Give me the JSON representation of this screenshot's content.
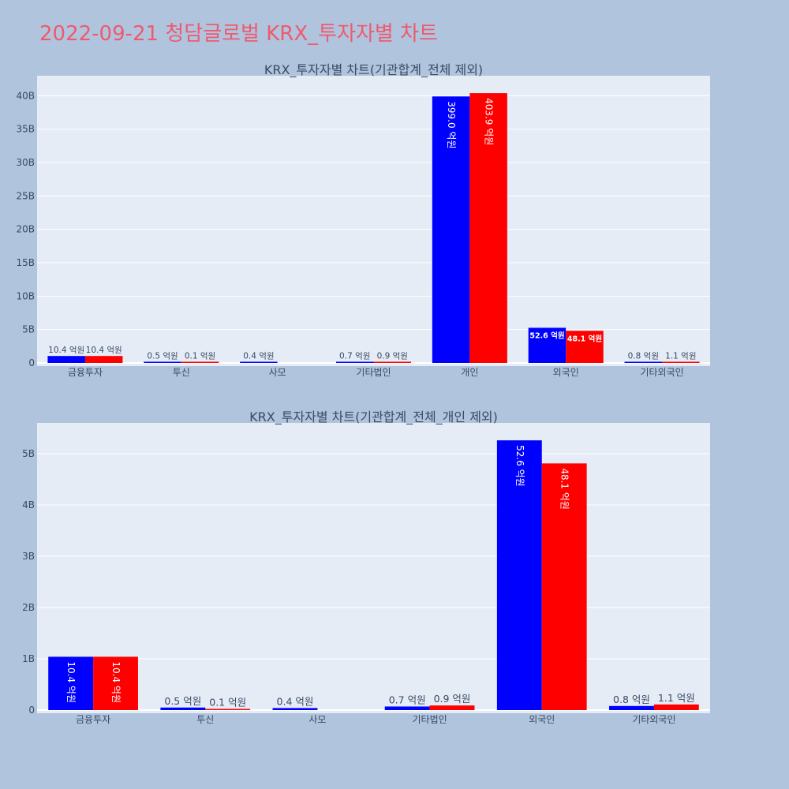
{
  "header": {
    "title": "2022-09-21 청담글로벌 KRX_투자자별 차트"
  },
  "colors": {
    "background": "#b0c4de",
    "plot_background": "#e5ecf6",
    "series_a": "#0000ff",
    "series_b": "#ff0000",
    "title": "#ef5a6e"
  },
  "chart_data": [
    {
      "type": "bar",
      "title": "KRX_투자자별 차트(기관합계_전체 제외)",
      "categories": [
        "금융투자",
        "투신",
        "사모",
        "기타법인",
        "개인",
        "외국인",
        "기타외국인"
      ],
      "series": [
        {
          "values": [
            1040000000,
            50000000,
            40000000,
            70000000,
            39900000000,
            5260000000,
            80000000
          ],
          "labels": [
            "10.4 억원",
            "0.5 억원",
            "0.4 억원",
            "0.7 억원",
            "399.0 억원",
            "52.6 억원",
            "0.8 억원"
          ]
        },
        {
          "values": [
            1040000000,
            10000000,
            0,
            90000000,
            40390000000,
            4810000000,
            110000000
          ],
          "labels": [
            "10.4 억원",
            "0.1 억원",
            "",
            "0.9 억원",
            "403.9 억원",
            "48.1 억원",
            "1.1 억원"
          ]
        }
      ],
      "yticks": [
        "0",
        "5B",
        "10B",
        "15B",
        "20B",
        "25B",
        "30B",
        "35B",
        "40B"
      ],
      "ylim": [
        0,
        43000000000
      ],
      "grid": true
    },
    {
      "type": "bar",
      "title": "KRX_투자자별 차트(기관합계_전체_개인 제외)",
      "categories": [
        "금융투자",
        "투신",
        "사모",
        "기타법인",
        "외국인",
        "기타외국인"
      ],
      "series": [
        {
          "values": [
            1040000000,
            50000000,
            40000000,
            70000000,
            5260000000,
            80000000
          ],
          "labels": [
            "10.4 억원",
            "0.5 억원",
            "0.4 억원",
            "0.7 억원",
            "52.6 억원",
            "0.8 억원"
          ]
        },
        {
          "values": [
            1040000000,
            10000000,
            0,
            90000000,
            4810000000,
            110000000
          ],
          "labels": [
            "10.4 억원",
            "0.1 억원",
            "",
            "0.9 억원",
            "48.1 억원",
            "1.1 억원"
          ]
        }
      ],
      "yticks": [
        "0",
        "1B",
        "2B",
        "3B",
        "4B",
        "5B"
      ],
      "ylim": [
        0,
        5600000000
      ],
      "grid": true
    }
  ]
}
